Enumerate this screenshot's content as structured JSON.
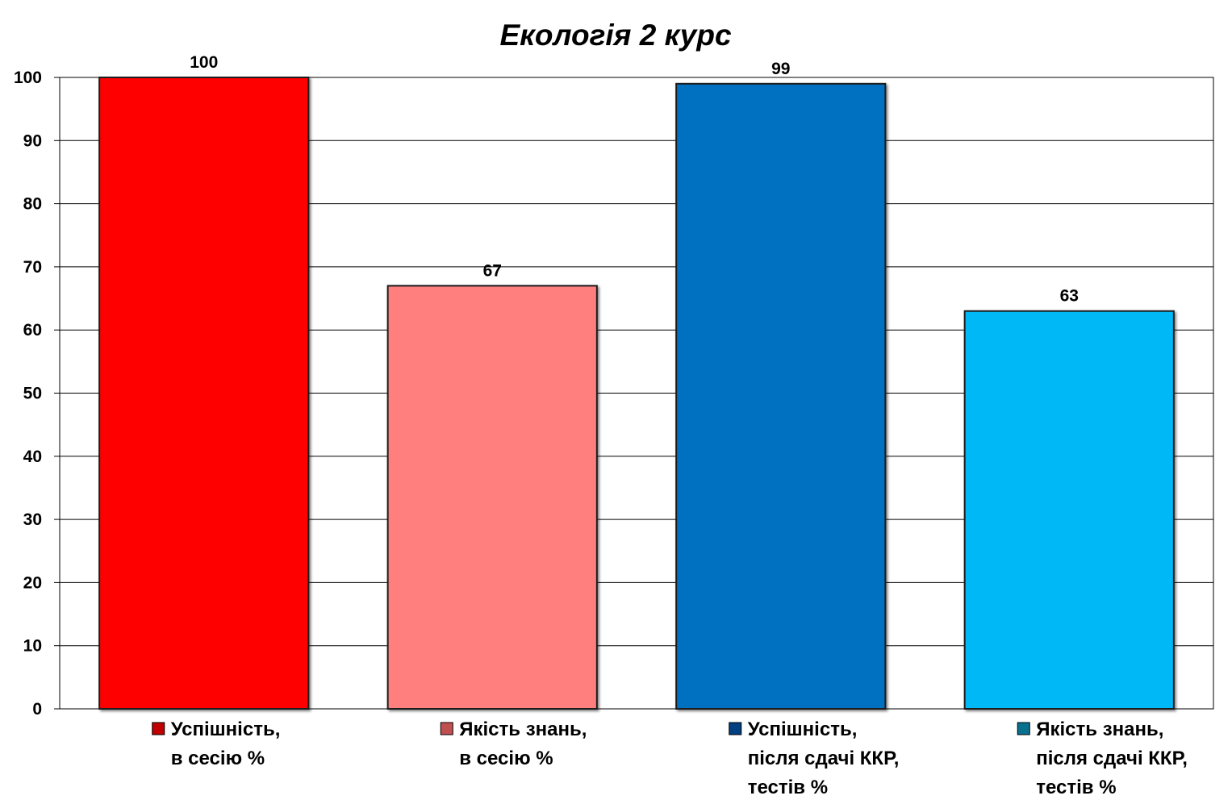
{
  "chart_data": {
    "type": "bar",
    "title": "Екологія 2 курс",
    "xlabel": "",
    "ylabel": "",
    "ylim": [
      0,
      100
    ],
    "yticks": [
      0,
      10,
      20,
      30,
      40,
      50,
      60,
      70,
      80,
      90,
      100
    ],
    "grid": true,
    "legend_position": "bottom",
    "categories": [
      [
        "Успішність,",
        "в сесію %"
      ],
      [
        "Якість знань,",
        "в сесію %"
      ],
      [
        "Успішність,",
        "після сдачі ККР,",
        "тестів %"
      ],
      [
        "Якість знань,",
        "після сдачі ККР,",
        "тестів %"
      ]
    ],
    "values": [
      100,
      67,
      99,
      63
    ],
    "data_labels": [
      "100",
      "67",
      "99",
      "63"
    ],
    "colors": [
      "#FF0000",
      "#FF7F7F",
      "#0070C0",
      "#00B8F5"
    ],
    "legend_swatch_colors": [
      "#C00000",
      "#C05050",
      "#003F80",
      "#0A7090"
    ]
  }
}
